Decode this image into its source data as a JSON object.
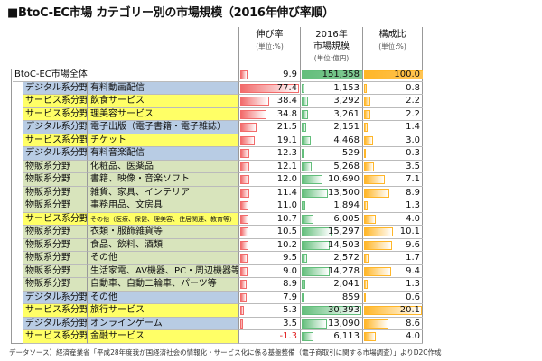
{
  "title": "■BtoC-EC市場 カテゴリー別の市場規模（2016年伸び率順）",
  "headers": {
    "growth": "伸び率",
    "growth_unit": "(単位:%)",
    "market": "2016年",
    "market2": "市場規模",
    "market_unit": "(単位:億円)",
    "share": "構成比",
    "share_unit": "(単位:%)"
  },
  "colors": {
    "digital": "#b8cce4",
    "service": "#ffff66",
    "goods": "#d8e4bc",
    "growth_bar": "#f26b6b",
    "market_bar": "#63be7b",
    "share_bar": "#ffb628",
    "negative": "#e02020"
  },
  "chart_data": {
    "type": "table",
    "total": {
      "name": "BtoC-EC市場全体",
      "growth": "9.9",
      "market": "151,358",
      "share": "100.0"
    },
    "rows": [
      {
        "type": "digital",
        "segment": "デジタル系分野",
        "name": "有料動画配信",
        "growth": "77.4",
        "market": "1,153",
        "share": "0.8"
      },
      {
        "type": "service",
        "segment": "サービス系分野",
        "name": "飲食サービス",
        "growth": "38.4",
        "market": "3,292",
        "share": "2.2"
      },
      {
        "type": "service",
        "segment": "サービス系分野",
        "name": "理美容サービス",
        "growth": "34.8",
        "market": "3,261",
        "share": "2.2"
      },
      {
        "type": "digital",
        "segment": "デジタル系分野",
        "name": "電子出版（電子書籍・電子雑誌）",
        "growth": "21.5",
        "market": "2,151",
        "share": "1.4"
      },
      {
        "type": "service",
        "segment": "サービス系分野",
        "name": "チケット",
        "growth": "19.1",
        "market": "4,468",
        "share": "3.0"
      },
      {
        "type": "digital",
        "segment": "デジタル系分野",
        "name": "有料音楽配信",
        "growth": "12.3",
        "market": "529",
        "share": "0.3"
      },
      {
        "type": "goods",
        "segment": "物販系分野",
        "name": "化粧品、医薬品",
        "growth": "12.1",
        "market": "5,268",
        "share": "3.5"
      },
      {
        "type": "goods",
        "segment": "物販系分野",
        "name": "書籍、映像・音楽ソフト",
        "growth": "12.0",
        "market": "10,690",
        "share": "7.1"
      },
      {
        "type": "goods",
        "segment": "物販系分野",
        "name": "雑貨、家具、インテリア",
        "growth": "11.4",
        "market": "13,500",
        "share": "8.9"
      },
      {
        "type": "goods",
        "segment": "物販系分野",
        "name": "事務用品、文房具",
        "growth": "11.0",
        "market": "1,894",
        "share": "1.3"
      },
      {
        "type": "service",
        "segment": "サービス系分野",
        "name": "その他（医療、保健、理美容、住居関連、教育等）",
        "growth": "10.7",
        "market": "6,005",
        "share": "4.0",
        "small": true
      },
      {
        "type": "goods",
        "segment": "物販系分野",
        "name": "衣類・服飾雑貨等",
        "growth": "10.5",
        "market": "15,297",
        "share": "10.1"
      },
      {
        "type": "goods",
        "segment": "物販系分野",
        "name": "食品、飲料、酒類",
        "growth": "10.2",
        "market": "14,503",
        "share": "9.6"
      },
      {
        "type": "goods",
        "segment": "物販系分野",
        "name": "その他",
        "growth": "9.5",
        "market": "2,572",
        "share": "1.7"
      },
      {
        "type": "goods",
        "segment": "物販系分野",
        "name": "生活家電、AV機器、PC・周辺機器等",
        "growth": "9.0",
        "market": "14,278",
        "share": "9.4"
      },
      {
        "type": "goods",
        "segment": "物販系分野",
        "name": "自動車、自動二輪車、パーツ等",
        "growth": "8.9",
        "market": "2,041",
        "share": "1.3"
      },
      {
        "type": "digital",
        "segment": "デジタル系分野",
        "name": "その他",
        "growth": "7.9",
        "market": "859",
        "share": "0.6"
      },
      {
        "type": "service",
        "segment": "サービス系分野",
        "name": "旅行サービス",
        "growth": "5.3",
        "market": "30,393",
        "share": "20.1"
      },
      {
        "type": "digital",
        "segment": "デジタル系分野",
        "name": "オンラインゲーム",
        "growth": "3.5",
        "market": "13,090",
        "share": "8.6"
      },
      {
        "type": "service",
        "segment": "サービス系分野",
        "name": "金融サービス",
        "growth": "-1.3",
        "market": "6,113",
        "share": "4.0"
      }
    ]
  },
  "footer": "データソース）経済産業省「平成28年度我が国経済社会の情報化・サービス化に係る基盤整備（電子商取引に関する市場調査）」よりD2C作成"
}
